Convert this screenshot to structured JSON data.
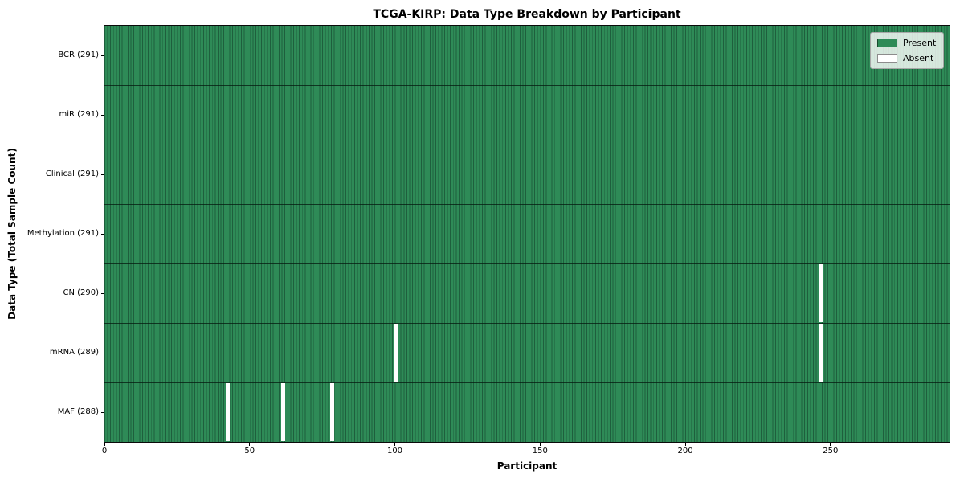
{
  "title": "TCGA-KIRP: Data Type Breakdown by Participant",
  "chart_data": {
    "type": "heatmap",
    "title": "TCGA-KIRP: Data Type Breakdown by Participant",
    "xlabel": "Participant",
    "ylabel": "Data Type (Total Sample Count)",
    "n_participants": 291,
    "x_ticks": [
      0,
      50,
      100,
      150,
      200,
      250
    ],
    "x_range": [
      0,
      291
    ],
    "grid": false,
    "legend_position": "upper right",
    "rows": [
      {
        "label": "BCR (291)",
        "data_type": "BCR",
        "present_count": 291,
        "absent_participants": []
      },
      {
        "label": "miR (291)",
        "data_type": "miR",
        "present_count": 291,
        "absent_participants": []
      },
      {
        "label": "Clinical (291)",
        "data_type": "Clinical",
        "present_count": 291,
        "absent_participants": []
      },
      {
        "label": "Methylation (291)",
        "data_type": "Methylation",
        "present_count": 291,
        "absent_participants": []
      },
      {
        "label": "CN (290)",
        "data_type": "CN",
        "present_count": 290,
        "absent_participants": [
          246
        ]
      },
      {
        "label": "mRNA (289)",
        "data_type": "mRNA",
        "present_count": 289,
        "absent_participants": [
          100,
          246
        ]
      },
      {
        "label": "MAF (288)",
        "data_type": "MAF",
        "present_count": 288,
        "absent_participants": [
          42,
          61,
          78
        ]
      }
    ],
    "legend": [
      {
        "label": "Present",
        "color": "#2e8b57"
      },
      {
        "label": "Absent",
        "color": "#ffffff"
      }
    ],
    "colors": {
      "present_fill": "#2e8b57",
      "column_edge": "#1e5f3d",
      "absent_fill": "#ffffff",
      "row_boundary": "rgba(5,25,15,0.75)",
      "spine": "#0a0a0a"
    }
  }
}
